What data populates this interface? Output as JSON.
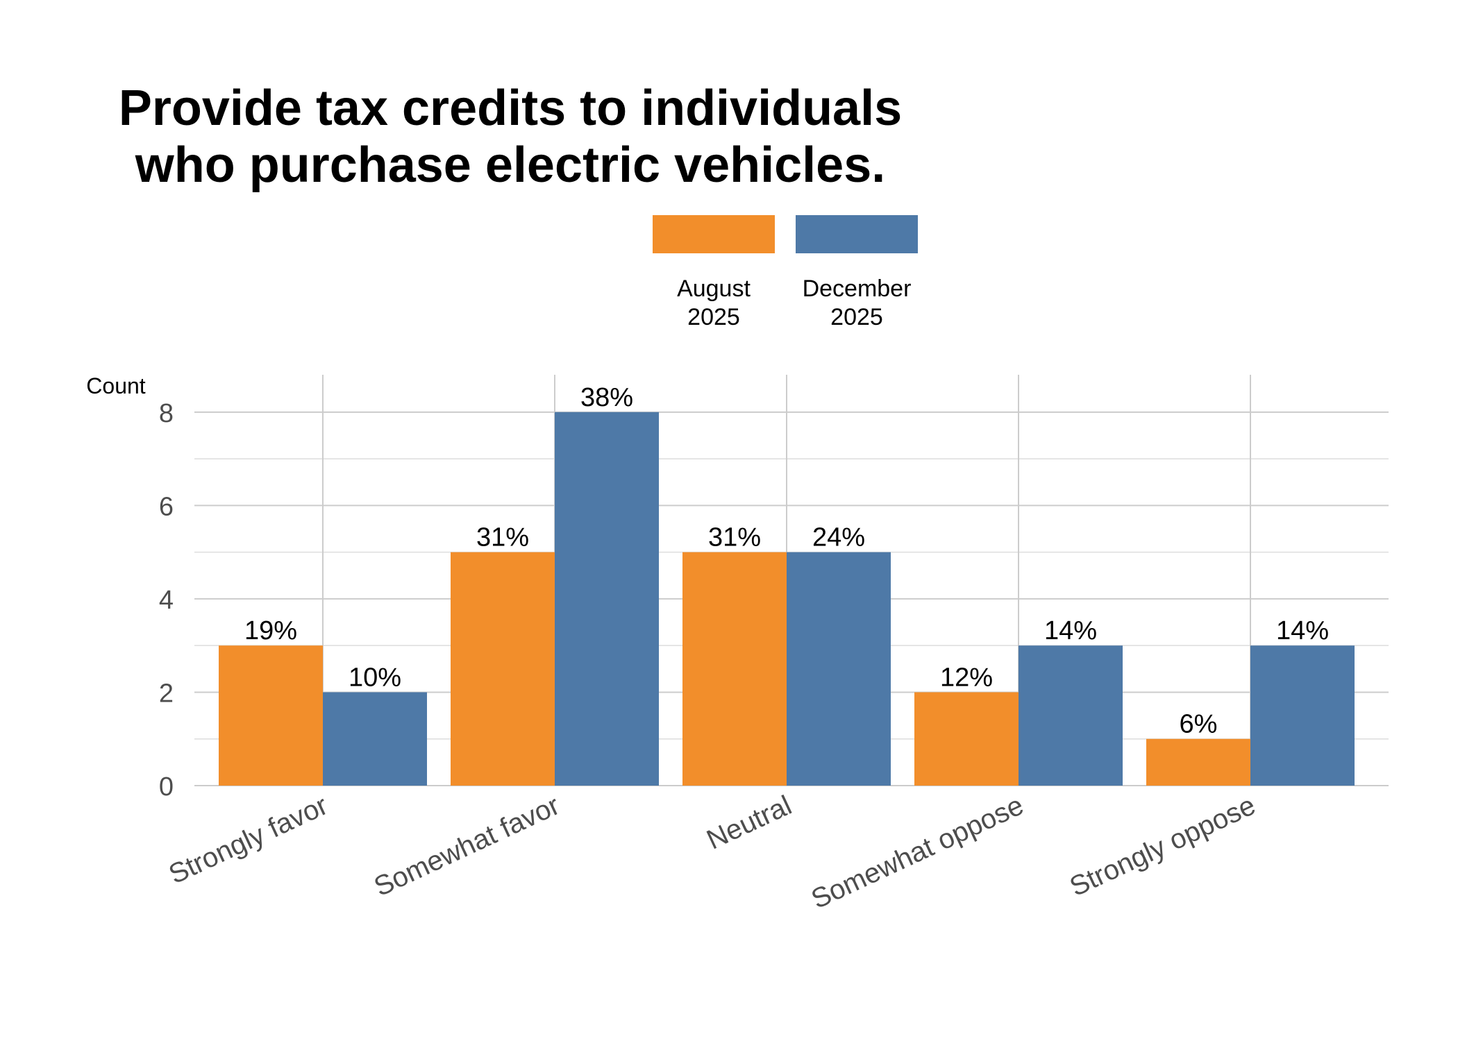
{
  "chart_data": {
    "type": "bar",
    "title_lines": [
      "Provide tax credits to individuals",
      "who purchase electric vehicles."
    ],
    "ylabel": "Count",
    "xlabel": "",
    "categories": [
      "Strongly favor",
      "Somewhat favor",
      "Neutral",
      "Somewhat oppose",
      "Strongly oppose"
    ],
    "ylim": [
      0,
      8.8
    ],
    "yticks": [
      0,
      2,
      4,
      6,
      8
    ],
    "grid": true,
    "legend_position": "top",
    "series": [
      {
        "name_lines": [
          "August",
          "2025"
        ],
        "color": "#F28E2B",
        "values": [
          3,
          5,
          5,
          2,
          1
        ],
        "labels": [
          "19%",
          "31%",
          "31%",
          "12%",
          "6%"
        ]
      },
      {
        "name_lines": [
          "December",
          "2025"
        ],
        "color": "#4E79A7",
        "values": [
          2,
          8,
          5,
          3,
          3
        ],
        "labels": [
          "10%",
          "38%",
          "24%",
          "14%",
          "14%"
        ]
      }
    ]
  }
}
